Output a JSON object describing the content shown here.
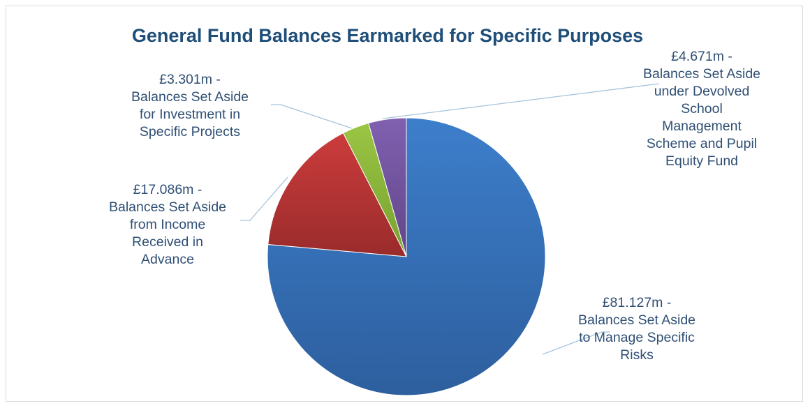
{
  "chart_data": {
    "type": "pie",
    "title": "General Fund Balances Earmarked for Specific Purposes",
    "slices": [
      {
        "label_lines": [
          "£81.127m -",
          "Balances Set Aside",
          "to Manage Specific",
          "Risks"
        ],
        "value": 81.127,
        "color": "#3d7ecb",
        "color_dark": "#2d5f9e"
      },
      {
        "label_lines": [
          "£17.086m -",
          "Balances Set Aside",
          "from Income",
          "Received in",
          "Advance"
        ],
        "value": 17.086,
        "color": "#cc3c3c",
        "color_dark": "#9a2b2b"
      },
      {
        "label_lines": [
          "£3.301m -",
          "Balances Set Aside",
          "for Investment in",
          "Specific Projects"
        ],
        "value": 3.301,
        "color": "#9bc544",
        "color_dark": "#76a12e"
      },
      {
        "label_lines": [
          "£4.671m -",
          "Balances Set Aside",
          "under Devolved",
          "School",
          "Management",
          "Scheme and Pupil",
          "Equity Fund"
        ],
        "value": 4.671,
        "color": "#8060b0",
        "color_dark": "#614689"
      }
    ],
    "start_angle": "12 o'clock",
    "direction": "clockwise",
    "legend": "none",
    "data_labels": "outside with leader lines"
  }
}
